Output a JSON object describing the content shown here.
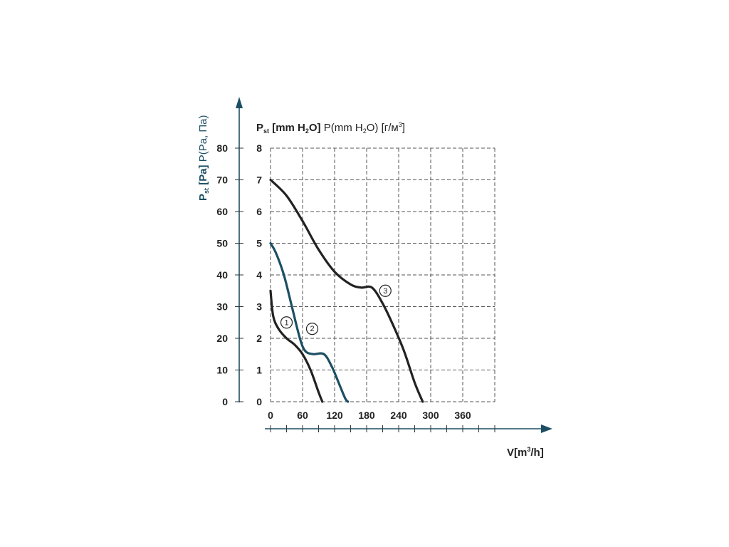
{
  "chart_data": {
    "type": "line",
    "y_left": {
      "title_bold": "P",
      "title_bold_sub": "st",
      "title_bold_rest": " [Pa]",
      "title_rest": " P(Pa, Па)",
      "ticks": [
        0,
        10,
        20,
        30,
        40,
        50,
        60,
        70,
        80
      ]
    },
    "y_right": {
      "title_bold": "P",
      "title_bold_sub": "st",
      "title_bold_rest": " [mm H",
      "title_bold_sub2": "2",
      "title_bold_rest2": "O]",
      "title_rest": " P(mm H",
      "title_rest_sub": "2",
      "title_rest_2": "O) [г/м",
      "title_rest_sup": "3",
      "title_rest_3": "]",
      "ticks": [
        0,
        1,
        2,
        3,
        4,
        5,
        6,
        7,
        8
      ]
    },
    "x": {
      "title": "V[m",
      "title_sup": "3",
      "title_rest": "/h]",
      "ticks": [
        0,
        60,
        120,
        180,
        240,
        300,
        360
      ],
      "range": [
        0,
        420
      ]
    },
    "grid": true,
    "colors": {
      "dark": "#222222",
      "teal": "#1c4f63"
    },
    "series": [
      {
        "marker": "1",
        "color": "#222222",
        "points": [
          [
            0,
            35
          ],
          [
            5,
            27
          ],
          [
            15,
            23
          ],
          [
            30,
            20
          ],
          [
            45,
            18
          ],
          [
            60,
            15
          ],
          [
            75,
            10
          ],
          [
            90,
            3
          ],
          [
            97,
            0
          ]
        ],
        "label_at": [
          30,
          25
        ]
      },
      {
        "marker": "2",
        "color": "#1c4f63",
        "points": [
          [
            0,
            50
          ],
          [
            10,
            47
          ],
          [
            25,
            40
          ],
          [
            40,
            30
          ],
          [
            55,
            20
          ],
          [
            65,
            16
          ],
          [
            80,
            15
          ],
          [
            100,
            15
          ],
          [
            115,
            11
          ],
          [
            130,
            5
          ],
          [
            140,
            1
          ],
          [
            145,
            0
          ]
        ],
        "label_at": [
          78,
          23
        ]
      },
      {
        "marker": "3",
        "color": "#222222",
        "points": [
          [
            0,
            70
          ],
          [
            30,
            65
          ],
          [
            60,
            57
          ],
          [
            90,
            48
          ],
          [
            120,
            41
          ],
          [
            150,
            37
          ],
          [
            170,
            36
          ],
          [
            190,
            36
          ],
          [
            210,
            31
          ],
          [
            230,
            24
          ],
          [
            250,
            16
          ],
          [
            270,
            6
          ],
          [
            285,
            0
          ]
        ],
        "label_at": [
          215,
          35
        ]
      }
    ]
  }
}
